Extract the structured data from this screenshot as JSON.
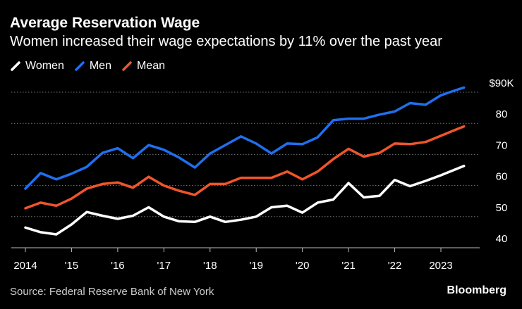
{
  "title": "Average Reservation Wage",
  "subtitle": "Women increased their wage expectations by 11% over the past year",
  "source": "Source: Federal Reserve Bank of New York",
  "brand": "Bloomberg",
  "chart_data": {
    "type": "line",
    "title": "Average Reservation Wage",
    "subtitle": "Women increased their wage expectations by 11% over the past year",
    "xlabel": "",
    "ylabel": "",
    "unit": "$K",
    "ylim": [
      40,
      90
    ],
    "xlim": [
      2014,
      2024
    ],
    "y_ticks": [
      {
        "value": 90,
        "label": "$90K"
      },
      {
        "value": 80,
        "label": "80"
      },
      {
        "value": 70,
        "label": "70"
      },
      {
        "value": 60,
        "label": "60"
      },
      {
        "value": 50,
        "label": "50"
      },
      {
        "value": 40,
        "label": "40"
      }
    ],
    "x_ticks": [
      {
        "value": 2014,
        "label": "2014"
      },
      {
        "value": 2015,
        "label": "'15"
      },
      {
        "value": 2016,
        "label": "'16"
      },
      {
        "value": 2017,
        "label": "'17"
      },
      {
        "value": 2018,
        "label": "'18"
      },
      {
        "value": 2019,
        "label": "'19"
      },
      {
        "value": 2020,
        "label": "'20"
      },
      {
        "value": 2021,
        "label": "'21"
      },
      {
        "value": 2022,
        "label": "'22"
      },
      {
        "value": 2023,
        "label": "2023"
      }
    ],
    "x": [
      2014.0,
      2014.33,
      2014.67,
      2015.0,
      2015.33,
      2015.67,
      2016.0,
      2016.33,
      2016.67,
      2017.0,
      2017.33,
      2017.67,
      2018.0,
      2018.33,
      2018.67,
      2019.0,
      2019.33,
      2019.67,
      2020.0,
      2020.33,
      2020.67,
      2021.0,
      2021.33,
      2021.67,
      2022.0,
      2022.33,
      2022.67,
      2023.0,
      2023.33,
      2023.5
    ],
    "series": [
      {
        "name": "Women",
        "color": "#ffffff",
        "values": [
          46.5,
          45.0,
          44.3,
          47.5,
          51.5,
          50.3,
          49.3,
          50.3,
          53.0,
          50.0,
          48.5,
          48.3,
          50.0,
          48.3,
          49.0,
          50.0,
          53.0,
          53.5,
          51.3,
          54.5,
          55.5,
          60.8,
          56.2,
          56.7,
          61.8,
          59.8,
          61.5,
          63.3,
          65.3,
          66.3
        ]
      },
      {
        "name": "Men",
        "color": "#1f6fef",
        "values": [
          59.0,
          64.0,
          62.0,
          63.8,
          66.0,
          70.5,
          72.0,
          68.8,
          73.0,
          71.5,
          69.0,
          65.8,
          70.3,
          73.0,
          75.8,
          73.5,
          70.3,
          73.5,
          73.3,
          75.5,
          81.0,
          81.5,
          81.5,
          82.8,
          83.8,
          86.5,
          86.0,
          89.0,
          90.7,
          91.5
        ]
      },
      {
        "name": "Mean",
        "color": "#f0552b",
        "values": [
          52.7,
          54.5,
          53.5,
          55.8,
          59.0,
          60.5,
          61.0,
          59.3,
          62.8,
          60.0,
          58.3,
          57.0,
          60.5,
          60.5,
          62.5,
          62.5,
          62.5,
          64.5,
          62.0,
          64.5,
          68.5,
          71.8,
          69.3,
          70.5,
          73.5,
          73.3,
          74.0,
          76.0,
          78.0,
          79.0
        ]
      }
    ],
    "legend_position": "top-left",
    "grid": true
  }
}
